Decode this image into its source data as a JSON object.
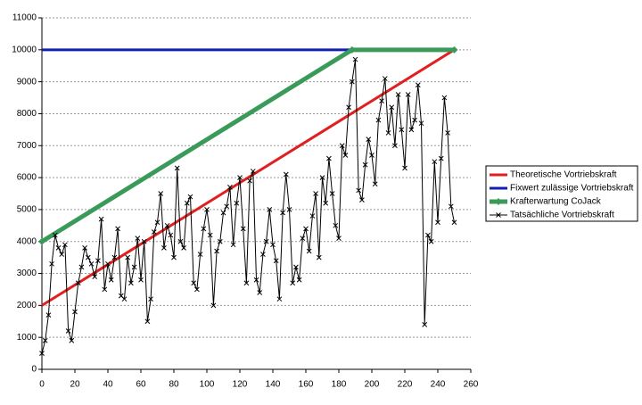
{
  "chart_data": {
    "type": "line",
    "xlim": [
      0,
      260
    ],
    "xticks": [
      0,
      20,
      40,
      60,
      80,
      100,
      120,
      140,
      160,
      180,
      200,
      220,
      240,
      260
    ],
    "ylim": [
      0,
      11000
    ],
    "yticks": [
      0,
      1000,
      2000,
      3000,
      4000,
      5000,
      6000,
      7000,
      8000,
      9000,
      10000,
      11000
    ],
    "grid": true,
    "legend": "right",
    "series": [
      {
        "name": "Theoretische Vortriebskraft",
        "color": "#e02020",
        "marker": "none",
        "x": [
          0,
          250
        ],
        "values": [
          2000,
          10000
        ]
      },
      {
        "name": "Fixwert zulässige Vortriebskraft",
        "color": "#1020b0",
        "marker": "none",
        "x": [
          0,
          250
        ],
        "values": [
          10000,
          10000
        ]
      },
      {
        "name": "Krafterwartung CoJack",
        "color": "#3a9a5a",
        "marker": "diamond",
        "x": [
          0,
          188,
          250
        ],
        "values": [
          4000,
          10000,
          10000
        ]
      },
      {
        "name": "Tatsächliche Vortriebskraft",
        "color": "#000000",
        "marker": "x",
        "x": [
          0,
          2,
          4,
          6,
          8,
          10,
          12,
          14,
          16,
          18,
          20,
          22,
          24,
          26,
          28,
          30,
          32,
          34,
          36,
          38,
          40,
          42,
          44,
          46,
          48,
          50,
          52,
          54,
          56,
          58,
          60,
          62,
          64,
          66,
          68,
          70,
          72,
          74,
          76,
          78,
          80,
          82,
          84,
          86,
          88,
          90,
          92,
          94,
          96,
          98,
          100,
          102,
          104,
          106,
          108,
          110,
          112,
          114,
          116,
          118,
          120,
          122,
          124,
          126,
          128,
          130,
          132,
          134,
          136,
          138,
          140,
          142,
          144,
          146,
          148,
          150,
          152,
          154,
          156,
          158,
          160,
          162,
          164,
          166,
          168,
          170,
          172,
          174,
          176,
          178,
          180,
          182,
          184,
          186,
          188,
          190,
          192,
          194,
          196,
          198,
          200,
          202,
          204,
          206,
          208,
          210,
          212,
          214,
          216,
          218,
          220,
          222,
          224,
          226,
          228,
          230,
          232,
          234,
          236,
          238,
          240,
          242,
          244,
          246,
          248,
          250
        ],
        "values": [
          500,
          900,
          1700,
          3300,
          4200,
          3800,
          3600,
          3900,
          1200,
          900,
          1800,
          2700,
          3200,
          3800,
          3500,
          3300,
          2900,
          3400,
          4700,
          2500,
          3300,
          2800,
          3500,
          4400,
          2300,
          2200,
          3500,
          2700,
          3200,
          4100,
          2800,
          4000,
          1500,
          2200,
          4300,
          4600,
          5500,
          3800,
          4500,
          4200,
          3500,
          6300,
          4000,
          3800,
          5200,
          5400,
          2700,
          2500,
          3600,
          4400,
          5000,
          4200,
          2000,
          3700,
          4000,
          4900,
          5100,
          5700,
          3900,
          5200,
          6000,
          4400,
          2700,
          5900,
          6200,
          2800,
          2400,
          3600,
          4000,
          5000,
          3900,
          3400,
          2200,
          4900,
          6100,
          5000,
          2700,
          3200,
          2800,
          4100,
          4400,
          3700,
          4800,
          5500,
          3500,
          6000,
          5200,
          6600,
          5500,
          4500,
          4100,
          7000,
          6700,
          8200,
          9000,
          9700,
          5600,
          5300,
          6400,
          7200,
          6700,
          5800,
          7800,
          8400,
          9100,
          7400,
          8200,
          7000,
          8600,
          7500,
          6300,
          8600,
          7500,
          7800,
          8900,
          7700,
          1400,
          4200,
          4000,
          6500,
          4600,
          6600,
          8500,
          7400,
          5100,
          4600
        ]
      }
    ]
  }
}
